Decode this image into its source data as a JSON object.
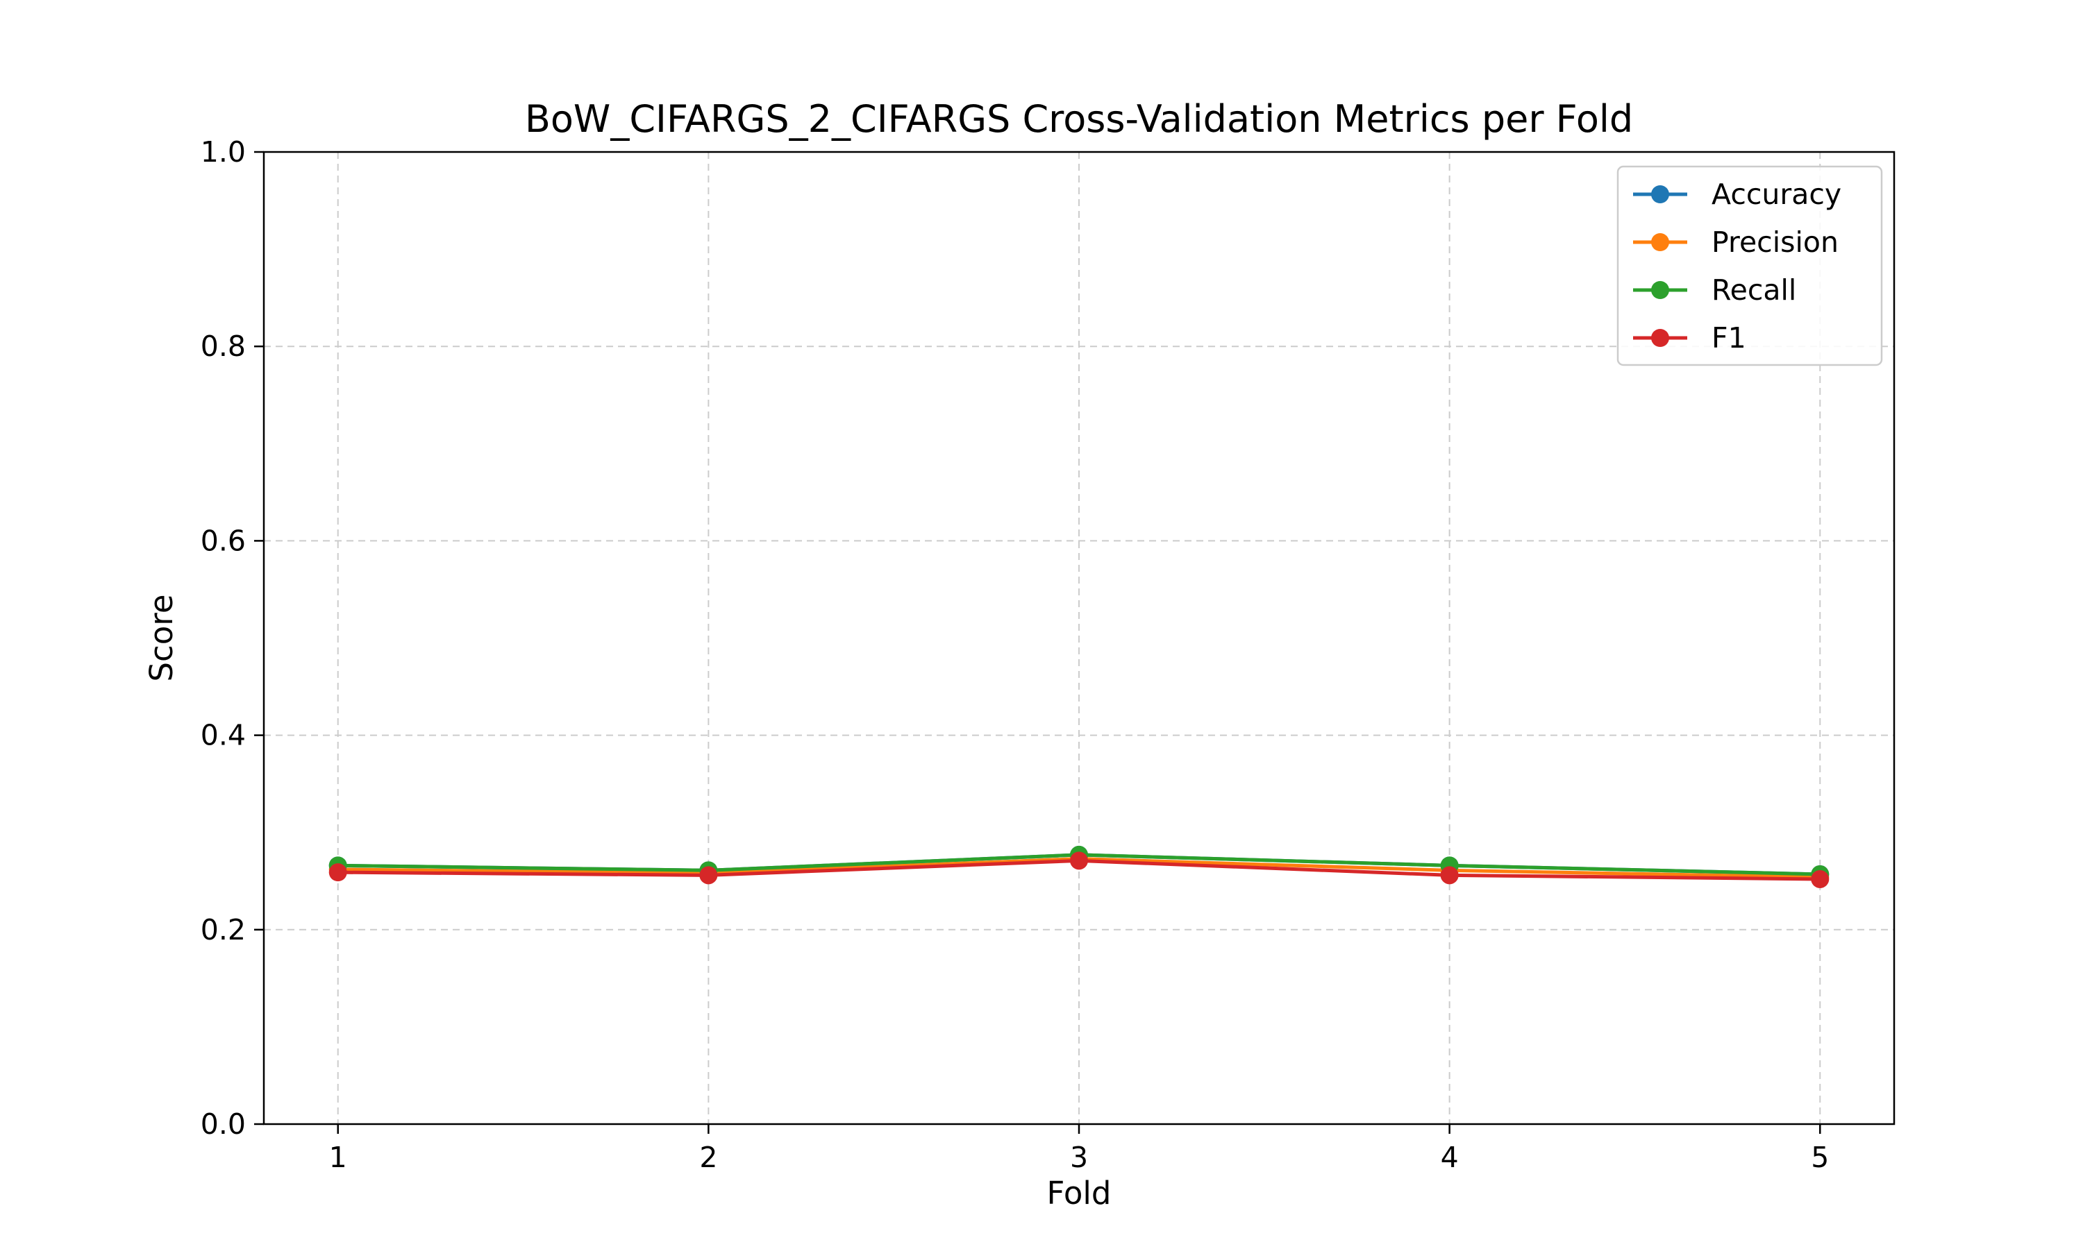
{
  "chart_data": {
    "type": "line",
    "title": "BoW_CIFARGS_2_CIFARGS Cross-Validation Metrics per Fold",
    "xlabel": "Fold",
    "ylabel": "Score",
    "x": [
      1,
      2,
      3,
      4,
      5
    ],
    "xticks": [
      "1",
      "2",
      "3",
      "4",
      "5"
    ],
    "ylim": [
      0.0,
      1.0
    ],
    "yticks": [
      "0.0",
      "0.2",
      "0.4",
      "0.6",
      "0.8",
      "1.0"
    ],
    "grid": true,
    "legend_position": "top-right",
    "series": [
      {
        "name": "Accuracy",
        "color": "#1f77b4",
        "values": [
          0.266,
          0.261,
          0.277,
          0.266,
          0.257
        ]
      },
      {
        "name": "Precision",
        "color": "#ff7f0e",
        "values": [
          0.262,
          0.258,
          0.273,
          0.261,
          0.254
        ]
      },
      {
        "name": "Recall",
        "color": "#2ca02c",
        "values": [
          0.266,
          0.261,
          0.277,
          0.266,
          0.257
        ]
      },
      {
        "name": "F1",
        "color": "#d62728",
        "values": [
          0.259,
          0.256,
          0.271,
          0.256,
          0.252
        ]
      }
    ]
  }
}
